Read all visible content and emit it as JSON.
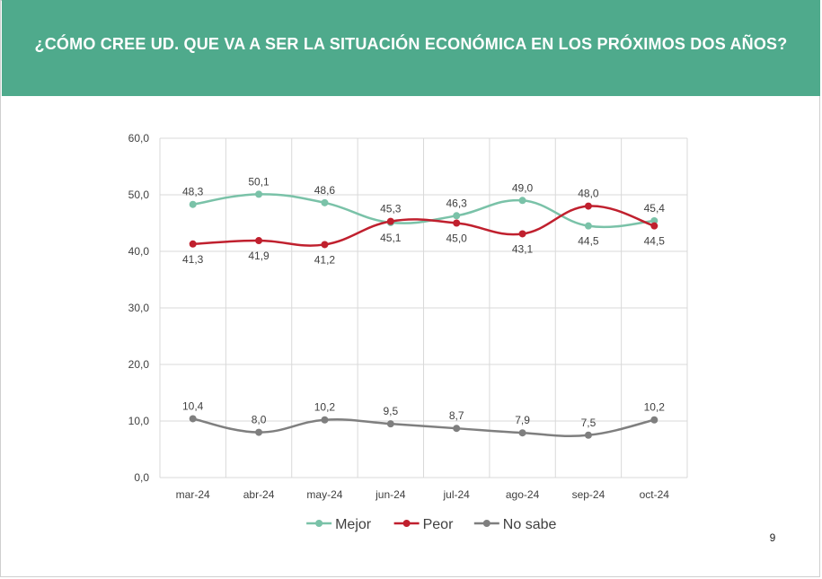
{
  "slide": {
    "title": "¿CÓMO CREE UD. QUE VA A SER LA SITUACIÓN ECONÓMICA EN LOS PRÓXIMOS DOS AÑOS?",
    "page_number": "9",
    "header_color": "#4faa8c"
  },
  "chart_data": {
    "type": "line",
    "title": "",
    "xlabel": "",
    "ylabel": "",
    "categories": [
      "mar-24",
      "abr-24",
      "may-24",
      "jun-24",
      "jul-24",
      "ago-24",
      "sep-24",
      "oct-24"
    ],
    "ylim": [
      0,
      60
    ],
    "yticks": [
      "0,0",
      "10,0",
      "20,0",
      "30,0",
      "40,0",
      "50,0",
      "60,0"
    ],
    "grid": true,
    "legend_position": "bottom",
    "series": [
      {
        "name": "Mejor",
        "color": "#7ac2a8",
        "values": [
          48.3,
          50.1,
          48.6,
          45.1,
          46.3,
          49.0,
          44.5,
          45.4
        ],
        "labels": [
          "48,3",
          "50,1",
          "48,6",
          "45,1",
          "46,3",
          "49,0",
          "44,5",
          "45,4"
        ]
      },
      {
        "name": "Peor",
        "color": "#c0202e",
        "values": [
          41.3,
          41.9,
          41.2,
          45.3,
          45.0,
          43.1,
          48.0,
          44.5
        ],
        "labels": [
          "41,3",
          "41,9",
          "41,2",
          "45,3",
          "45,0",
          "43,1",
          "48,0",
          "44,5"
        ]
      },
      {
        "name": "No sabe",
        "color": "#7f7f7f",
        "values": [
          10.4,
          8.0,
          10.2,
          9.5,
          8.7,
          7.9,
          7.5,
          10.2
        ],
        "labels": [
          "10,4",
          "8,0",
          "10,2",
          "9,5",
          "8,7",
          "7,9",
          "7,5",
          "10,2"
        ]
      }
    ]
  }
}
